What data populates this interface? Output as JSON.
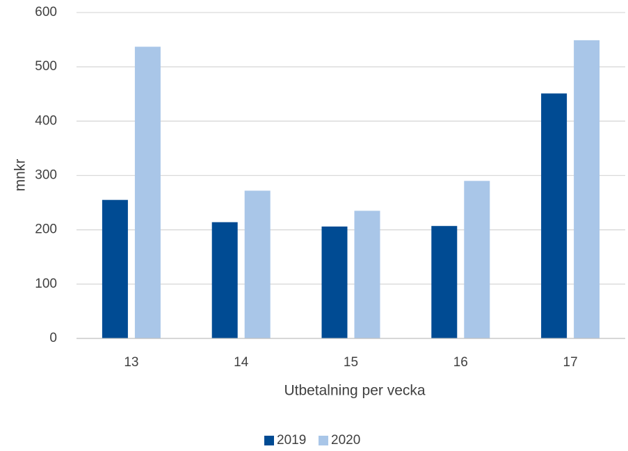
{
  "chart_data": {
    "type": "bar",
    "title": "",
    "xlabel": "Utbetalning per vecka",
    "ylabel": "mnkr",
    "categories": [
      "13",
      "14",
      "15",
      "16",
      "17"
    ],
    "series": [
      {
        "name": "2019",
        "color": "#004B93",
        "values": [
          255,
          214,
          206,
          207,
          451
        ]
      },
      {
        "name": "2020",
        "color": "#A9C6E8",
        "values": [
          537,
          272,
          235,
          290,
          549
        ]
      }
    ],
    "ylim": [
      0,
      600
    ],
    "yticks": [
      0,
      100,
      200,
      300,
      400,
      500,
      600
    ],
    "grid": true,
    "legend_position": "bottom"
  },
  "colors": {
    "gridline": "#D9D9D9",
    "axis_line": "#BFBFBF",
    "text": "#404040"
  }
}
